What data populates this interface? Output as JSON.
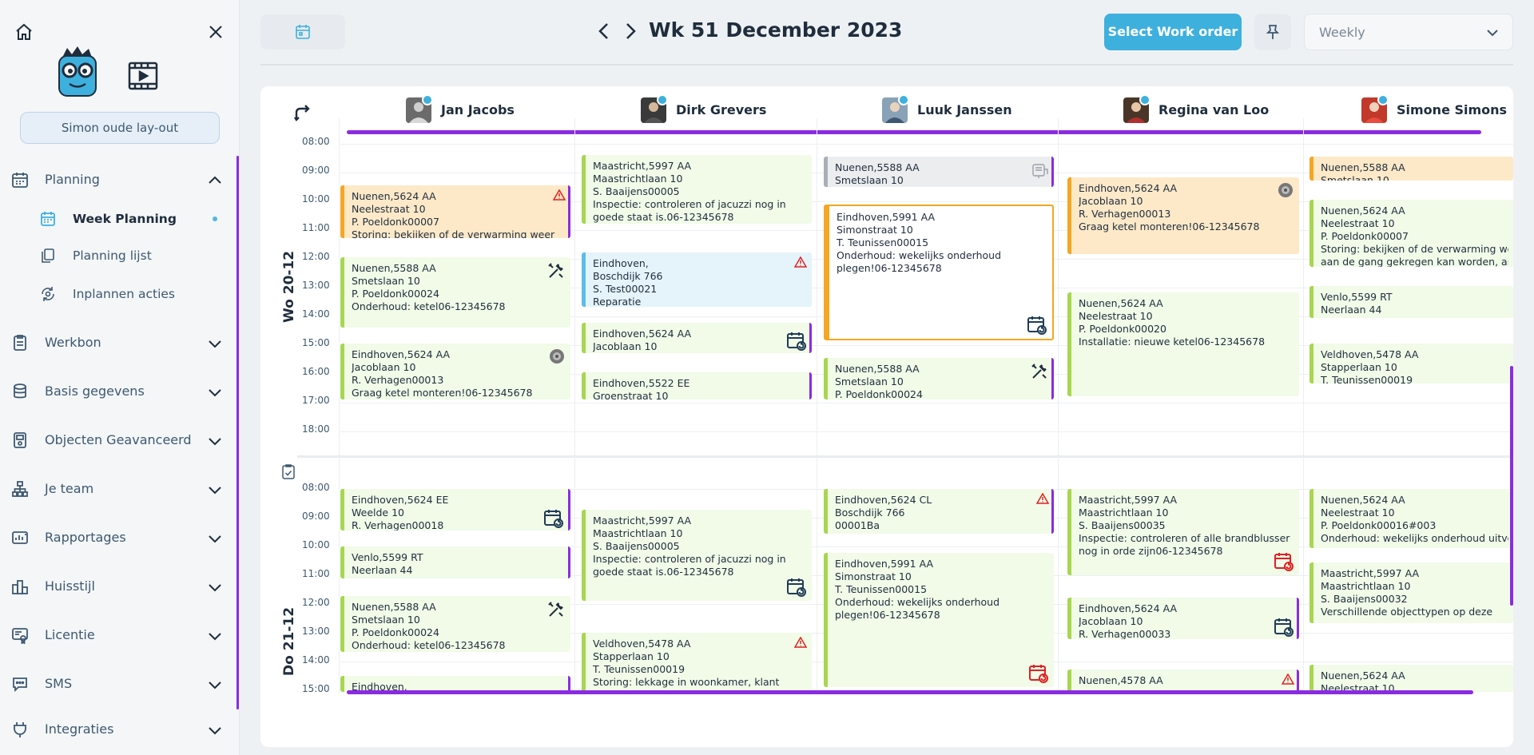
{
  "sidebar": {
    "layout_button": "Simon oude lay-out",
    "items": [
      {
        "label": "Planning",
        "expanded": true
      },
      {
        "label": "Werkbon"
      },
      {
        "label": "Basis gegevens"
      },
      {
        "label": "Objecten Geavanceerd"
      },
      {
        "label": "Je team"
      },
      {
        "label": "Rapportages"
      },
      {
        "label": "Huisstijl"
      },
      {
        "label": "Licentie"
      },
      {
        "label": "SMS"
      },
      {
        "label": "Integraties"
      }
    ],
    "planning_sub": [
      {
        "label": "Week Planning",
        "active": true
      },
      {
        "label": "Planning lijst"
      },
      {
        "label": "Inplannen acties"
      }
    ]
  },
  "header": {
    "week_title": "Wk 51 December 2023",
    "select_work_order": "Select Work order",
    "view_mode": "Weekly"
  },
  "technicians": [
    {
      "name": "Jan Jacobs"
    },
    {
      "name": "Dirk Grevers"
    },
    {
      "name": "Luuk Janssen"
    },
    {
      "name": "Regina van Loo"
    },
    {
      "name": "Simone Simons"
    }
  ],
  "days": [
    {
      "label": "Wo 20-12",
      "times": [
        "08:00",
        "09:00",
        "10:00",
        "11:00",
        "12:00",
        "13:00",
        "14:00",
        "15:00",
        "16:00",
        "17:00",
        "18:00"
      ]
    },
    {
      "label": "Do 21-12",
      "times": [
        "08:00",
        "09:00",
        "10:00",
        "11:00",
        "12:00",
        "13:00",
        "14:00",
        "15:00"
      ]
    }
  ],
  "cards": {
    "c1": [
      "Nuenen,5624 AA",
      "Neelestraat 10",
      "P. Poeldonk00007",
      "Storing: bekijken of de verwarming weer"
    ],
    "c2": [
      "Nuenen,5588 AA",
      "Smetslaan 10",
      "P. Poeldonk00024",
      "Onderhoud: ketel06-12345678"
    ],
    "c3": [
      "Eindhoven,5624 AA",
      "Jacoblaan 10",
      "R. Verhagen00013",
      "Graag ketel monteren!06-12345678"
    ],
    "c4": [
      "Maastricht,5997 AA",
      "Maastrichtlaan 10",
      "S. Baaijens00005",
      "Inspectie: controleren of jacuzzi nog in",
      "goede staat is.06-12345678"
    ],
    "c5": [
      "Eindhoven,",
      "Boschdijk 766",
      "S. Test00021",
      "Reparatie"
    ],
    "c6": [
      "Eindhoven,5624 AA",
      "Jacoblaan 10"
    ],
    "c7": [
      "Eindhoven,5522 EE",
      "Groenstraat 10"
    ],
    "c8": [
      "Nuenen,5588 AA",
      "Smetslaan 10"
    ],
    "c9": [
      "Eindhoven,5991 AA",
      "Simonstraat 10",
      "T. Teunissen00015",
      "Onderhoud: wekelijks onderhoud",
      "plegen!06-12345678"
    ],
    "c10": [
      "Nuenen,5588 AA",
      "Smetslaan 10",
      "P. Poeldonk00024"
    ],
    "c11": [
      "Eindhoven,5624 AA",
      "Jacoblaan 10",
      "R. Verhagen00013",
      "Graag ketel monteren!06-12345678"
    ],
    "c12": [
      "Nuenen,5624 AA",
      "Neelestraat 10",
      "P. Poeldonk00020",
      "Installatie: nieuwe ketel06-12345678"
    ],
    "c13": [
      "Nuenen,5588 AA",
      "Smetslaan 10"
    ],
    "c14": [
      "Nuenen,5624 AA",
      "Neelestraat 10",
      "P. Poeldonk00007",
      "Storing: bekijken of de verwarming weer",
      "aan de gang gekregen kan worden, anders"
    ],
    "c15": [
      "Venlo,5599 RT",
      "Neerlaan 44"
    ],
    "c16": [
      "Veldhoven,5478 AA",
      "Stapperlaan 10",
      "T. Teunissen00019"
    ],
    "d1": [
      "Eindhoven,5624 EE",
      "Weelde 10",
      "R. Verhagen00018"
    ],
    "d2": [
      "Venlo,5599 RT",
      "Neerlaan 44"
    ],
    "d3": [
      "Nuenen,5588 AA",
      "Smetslaan 10",
      "P. Poeldonk00024",
      "Onderhoud: ketel06-12345678"
    ],
    "d4": [
      "Eindhoven,"
    ],
    "d5": [
      "Maastricht,5997 AA",
      "Maastrichtlaan 10",
      "S. Baaijens00005",
      "Inspectie: controleren of jacuzzi nog in",
      "goede staat is.06-12345678"
    ],
    "d6": [
      "Veldhoven,5478 AA",
      "Stapperlaan 10",
      "T. Teunissen00019",
      "Storing: lekkage in woonkamer, klant"
    ],
    "d7": [
      "Eindhoven,5624 CL",
      "Boschdijk 766",
      "00001Ba"
    ],
    "d8": [
      "Eindhoven,5991 AA",
      "Simonstraat 10",
      "T. Teunissen00015",
      "Onderhoud: wekelijks onderhoud",
      "plegen!06-12345678"
    ],
    "d9": [
      "Maastricht,5997 AA",
      "Maastrichtlaan 10",
      "S. Baaijens00035",
      "Inspectie: controleren of alle brandblusser",
      "nog in orde zijn06-12345678"
    ],
    "d10": [
      "Eindhoven,5624 AA",
      "Jacoblaan 10",
      "R. Verhagen00033"
    ],
    "d11": [
      "Nuenen,4578 AA"
    ],
    "d12": [
      "Nuenen,5624 AA",
      "Neelestraat 10",
      "P. Poeldonk00016#003",
      "Onderhoud: wekelijks onderhoud uitvoeren"
    ],
    "d13": [
      "Maastricht,5997 AA",
      "Maastrichtlaan 10",
      "S. Baaijens00032",
      "Verschillende objecttypen op deze"
    ],
    "d14": [
      "Nuenen,5624 AA",
      "Neelestraat 10"
    ]
  },
  "colors": {
    "accent": "#3eb0de",
    "scroll": "#8a2be2",
    "green_card": "#f1fbe8",
    "orange_card": "#fde9c8",
    "blue_card": "#e5f3fb"
  }
}
